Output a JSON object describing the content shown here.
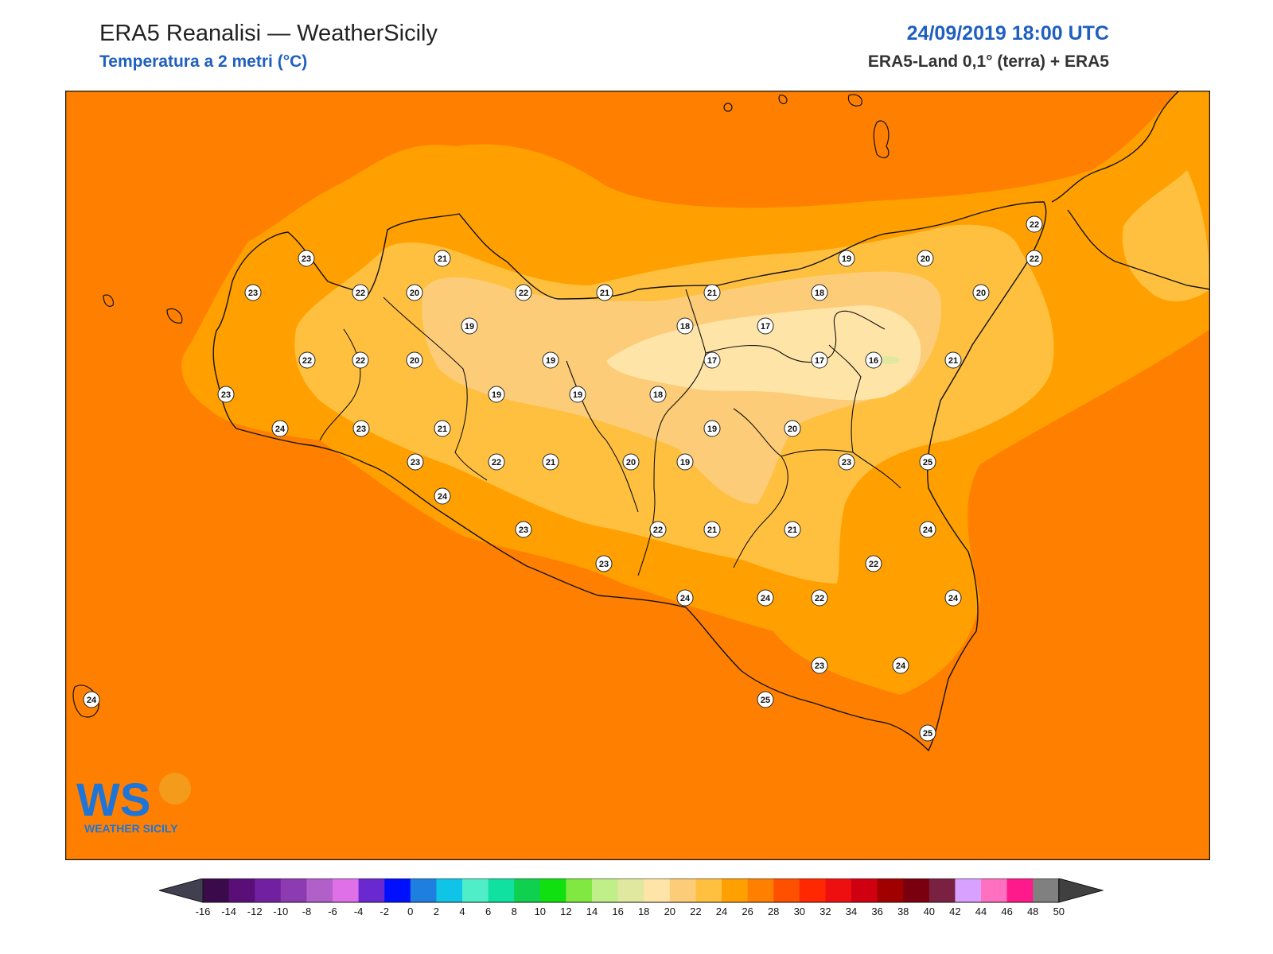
{
  "header": {
    "title": "ERA5 Reanalisi — WeatherSicily",
    "subtitle": "Temperatura a 2 metri (°C)",
    "datetime": "24/09/2019 18:00 UTC",
    "source": "ERA5-Land 0,1° (terra) + ERA5"
  },
  "logo": {
    "letters": "WS",
    "name": "WEATHER SICILY"
  },
  "colors": {
    "sea": "#ff8000",
    "band24": "#ffa000",
    "band22": "#ffc040",
    "band20": "#fccc78",
    "band18": "#ffe4a8",
    "land_line": "#111111",
    "accent": "#1f5fbf"
  },
  "stations": [
    {
      "v": "23"
    },
    {
      "v": "21"
    },
    {
      "v": "23"
    },
    {
      "v": "22"
    },
    {
      "v": "20"
    },
    {
      "v": "22"
    },
    {
      "v": "21"
    },
    {
      "v": "21"
    },
    {
      "v": "19"
    },
    {
      "v": "18"
    },
    {
      "v": "20"
    },
    {
      "v": "22"
    },
    {
      "v": "22"
    },
    {
      "v": "19"
    },
    {
      "v": "18"
    },
    {
      "v": "17"
    },
    {
      "v": "22"
    },
    {
      "v": "22"
    },
    {
      "v": "20"
    },
    {
      "v": "19"
    },
    {
      "v": "17"
    },
    {
      "v": "17"
    },
    {
      "v": "16"
    },
    {
      "v": "21"
    },
    {
      "v": "20"
    },
    {
      "v": "23"
    },
    {
      "v": "19"
    },
    {
      "v": "19"
    },
    {
      "v": "18"
    },
    {
      "v": "24"
    },
    {
      "v": "23"
    },
    {
      "v": "21"
    },
    {
      "v": "19"
    },
    {
      "v": "20"
    },
    {
      "v": "23"
    },
    {
      "v": "22"
    },
    {
      "v": "21"
    },
    {
      "v": "20"
    },
    {
      "v": "19"
    },
    {
      "v": "23"
    },
    {
      "v": "25"
    },
    {
      "v": "24"
    },
    {
      "v": "23"
    },
    {
      "v": "22"
    },
    {
      "v": "21"
    },
    {
      "v": "21"
    },
    {
      "v": "24"
    },
    {
      "v": "23"
    },
    {
      "v": "22"
    },
    {
      "v": "24"
    },
    {
      "v": "24"
    },
    {
      "v": "22"
    },
    {
      "v": "24"
    },
    {
      "v": "23"
    },
    {
      "v": "24"
    },
    {
      "v": "24"
    },
    {
      "v": "25"
    },
    {
      "v": "25"
    }
  ],
  "colorbar": {
    "ticks": [
      "-16",
      "-14",
      "-12",
      "-10",
      "-8",
      "-6",
      "-4",
      "-2",
      "0",
      "2",
      "4",
      "6",
      "8",
      "10",
      "12",
      "14",
      "16",
      "18",
      "20",
      "22",
      "24",
      "26",
      "28",
      "30",
      "32",
      "34",
      "36",
      "38",
      "40",
      "42",
      "44",
      "46",
      "48",
      "50"
    ],
    "colors": [
      "#3a0a4a",
      "#5a0e78",
      "#7020a0",
      "#8c3cb0",
      "#b060c8",
      "#e070e8",
      "#6a28d0",
      "#0010ff",
      "#1f7fe0",
      "#10c4e8",
      "#50eec8",
      "#10e0a0",
      "#10d050",
      "#10e010",
      "#80e840",
      "#c0ee88",
      "#e0e8a0",
      "#ffe4a8",
      "#fccc78",
      "#ffc040",
      "#ffa000",
      "#ff8000",
      "#ff5000",
      "#ff2800",
      "#ee1010",
      "#d00010",
      "#a00000",
      "#7a0010",
      "#7a2040",
      "#d8a0ff",
      "#ff70c0",
      "#ff1a8c",
      "#808080",
      "#404040"
    ]
  }
}
